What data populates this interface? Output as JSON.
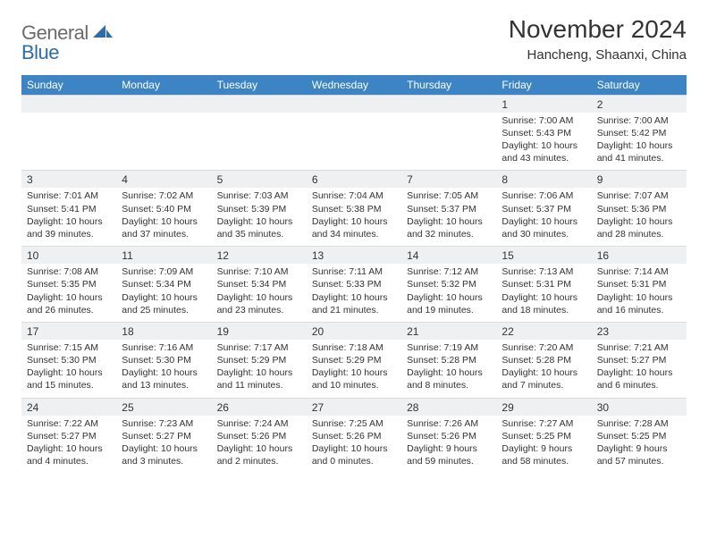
{
  "brand": {
    "part1": "General",
    "part2": "Blue"
  },
  "title": "November 2024",
  "location": "Hancheng, Shaanxi, China",
  "colors": {
    "header_bg": "#3d84c4",
    "header_text": "#ffffff",
    "daynum_bg": "#eef0f2",
    "cell_bg": "#ffffff",
    "text": "#333333",
    "logo_gray": "#6b6b6b",
    "logo_blue": "#2f6da8"
  },
  "day_labels": [
    "Sunday",
    "Monday",
    "Tuesday",
    "Wednesday",
    "Thursday",
    "Friday",
    "Saturday"
  ],
  "weeks": [
    [
      {
        "n": "",
        "sr": "",
        "ss": "",
        "dl": ""
      },
      {
        "n": "",
        "sr": "",
        "ss": "",
        "dl": ""
      },
      {
        "n": "",
        "sr": "",
        "ss": "",
        "dl": ""
      },
      {
        "n": "",
        "sr": "",
        "ss": "",
        "dl": ""
      },
      {
        "n": "",
        "sr": "",
        "ss": "",
        "dl": ""
      },
      {
        "n": "1",
        "sr": "Sunrise: 7:00 AM",
        "ss": "Sunset: 5:43 PM",
        "dl": "Daylight: 10 hours and 43 minutes."
      },
      {
        "n": "2",
        "sr": "Sunrise: 7:00 AM",
        "ss": "Sunset: 5:42 PM",
        "dl": "Daylight: 10 hours and 41 minutes."
      }
    ],
    [
      {
        "n": "3",
        "sr": "Sunrise: 7:01 AM",
        "ss": "Sunset: 5:41 PM",
        "dl": "Daylight: 10 hours and 39 minutes."
      },
      {
        "n": "4",
        "sr": "Sunrise: 7:02 AM",
        "ss": "Sunset: 5:40 PM",
        "dl": "Daylight: 10 hours and 37 minutes."
      },
      {
        "n": "5",
        "sr": "Sunrise: 7:03 AM",
        "ss": "Sunset: 5:39 PM",
        "dl": "Daylight: 10 hours and 35 minutes."
      },
      {
        "n": "6",
        "sr": "Sunrise: 7:04 AM",
        "ss": "Sunset: 5:38 PM",
        "dl": "Daylight: 10 hours and 34 minutes."
      },
      {
        "n": "7",
        "sr": "Sunrise: 7:05 AM",
        "ss": "Sunset: 5:37 PM",
        "dl": "Daylight: 10 hours and 32 minutes."
      },
      {
        "n": "8",
        "sr": "Sunrise: 7:06 AM",
        "ss": "Sunset: 5:37 PM",
        "dl": "Daylight: 10 hours and 30 minutes."
      },
      {
        "n": "9",
        "sr": "Sunrise: 7:07 AM",
        "ss": "Sunset: 5:36 PM",
        "dl": "Daylight: 10 hours and 28 minutes."
      }
    ],
    [
      {
        "n": "10",
        "sr": "Sunrise: 7:08 AM",
        "ss": "Sunset: 5:35 PM",
        "dl": "Daylight: 10 hours and 26 minutes."
      },
      {
        "n": "11",
        "sr": "Sunrise: 7:09 AM",
        "ss": "Sunset: 5:34 PM",
        "dl": "Daylight: 10 hours and 25 minutes."
      },
      {
        "n": "12",
        "sr": "Sunrise: 7:10 AM",
        "ss": "Sunset: 5:34 PM",
        "dl": "Daylight: 10 hours and 23 minutes."
      },
      {
        "n": "13",
        "sr": "Sunrise: 7:11 AM",
        "ss": "Sunset: 5:33 PM",
        "dl": "Daylight: 10 hours and 21 minutes."
      },
      {
        "n": "14",
        "sr": "Sunrise: 7:12 AM",
        "ss": "Sunset: 5:32 PM",
        "dl": "Daylight: 10 hours and 19 minutes."
      },
      {
        "n": "15",
        "sr": "Sunrise: 7:13 AM",
        "ss": "Sunset: 5:31 PM",
        "dl": "Daylight: 10 hours and 18 minutes."
      },
      {
        "n": "16",
        "sr": "Sunrise: 7:14 AM",
        "ss": "Sunset: 5:31 PM",
        "dl": "Daylight: 10 hours and 16 minutes."
      }
    ],
    [
      {
        "n": "17",
        "sr": "Sunrise: 7:15 AM",
        "ss": "Sunset: 5:30 PM",
        "dl": "Daylight: 10 hours and 15 minutes."
      },
      {
        "n": "18",
        "sr": "Sunrise: 7:16 AM",
        "ss": "Sunset: 5:30 PM",
        "dl": "Daylight: 10 hours and 13 minutes."
      },
      {
        "n": "19",
        "sr": "Sunrise: 7:17 AM",
        "ss": "Sunset: 5:29 PM",
        "dl": "Daylight: 10 hours and 11 minutes."
      },
      {
        "n": "20",
        "sr": "Sunrise: 7:18 AM",
        "ss": "Sunset: 5:29 PM",
        "dl": "Daylight: 10 hours and 10 minutes."
      },
      {
        "n": "21",
        "sr": "Sunrise: 7:19 AM",
        "ss": "Sunset: 5:28 PM",
        "dl": "Daylight: 10 hours and 8 minutes."
      },
      {
        "n": "22",
        "sr": "Sunrise: 7:20 AM",
        "ss": "Sunset: 5:28 PM",
        "dl": "Daylight: 10 hours and 7 minutes."
      },
      {
        "n": "23",
        "sr": "Sunrise: 7:21 AM",
        "ss": "Sunset: 5:27 PM",
        "dl": "Daylight: 10 hours and 6 minutes."
      }
    ],
    [
      {
        "n": "24",
        "sr": "Sunrise: 7:22 AM",
        "ss": "Sunset: 5:27 PM",
        "dl": "Daylight: 10 hours and 4 minutes."
      },
      {
        "n": "25",
        "sr": "Sunrise: 7:23 AM",
        "ss": "Sunset: 5:27 PM",
        "dl": "Daylight: 10 hours and 3 minutes."
      },
      {
        "n": "26",
        "sr": "Sunrise: 7:24 AM",
        "ss": "Sunset: 5:26 PM",
        "dl": "Daylight: 10 hours and 2 minutes."
      },
      {
        "n": "27",
        "sr": "Sunrise: 7:25 AM",
        "ss": "Sunset: 5:26 PM",
        "dl": "Daylight: 10 hours and 0 minutes."
      },
      {
        "n": "28",
        "sr": "Sunrise: 7:26 AM",
        "ss": "Sunset: 5:26 PM",
        "dl": "Daylight: 9 hours and 59 minutes."
      },
      {
        "n": "29",
        "sr": "Sunrise: 7:27 AM",
        "ss": "Sunset: 5:25 PM",
        "dl": "Daylight: 9 hours and 58 minutes."
      },
      {
        "n": "30",
        "sr": "Sunrise: 7:28 AM",
        "ss": "Sunset: 5:25 PM",
        "dl": "Daylight: 9 hours and 57 minutes."
      }
    ]
  ]
}
